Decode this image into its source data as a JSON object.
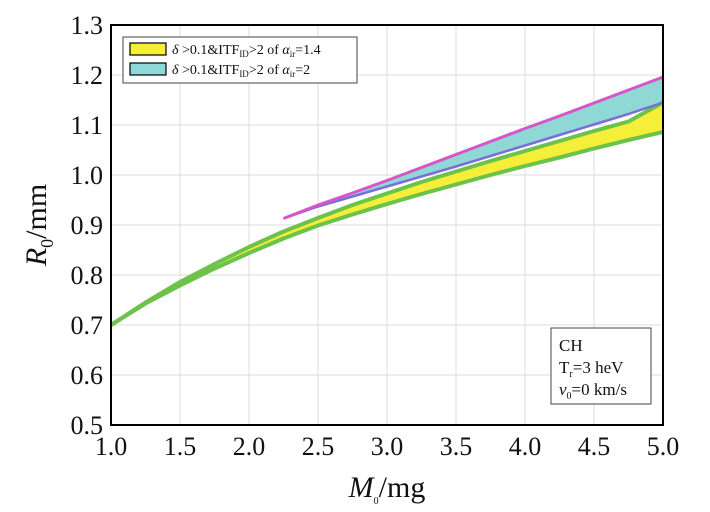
{
  "chart_data": {
    "type": "area",
    "title": "",
    "xlabel": {
      "main": "M",
      "sub": "0",
      "unit": "/mg"
    },
    "ylabel": {
      "main": "R",
      "sub": "0",
      "unit": "/mm"
    },
    "xlim": [
      1.0,
      5.0
    ],
    "ylim": [
      0.5,
      1.3
    ],
    "grid": true,
    "x_ticks": [
      "1.0",
      "1.5",
      "2.0",
      "2.5",
      "3.0",
      "3.5",
      "4.0",
      "4.5",
      "5.0"
    ],
    "y_ticks": [
      "0.5",
      "0.6",
      "0.7",
      "0.8",
      "0.9",
      "1.0",
      "1.1",
      "1.2",
      "1.3"
    ],
    "legend_position": "top-left",
    "series": [
      {
        "name": "yellow-band",
        "legend": {
          "prefix": "δ",
          "mid": " >0.1&ITF",
          "sub1": "ID",
          "mid2": ">2 of ",
          "alpha": "α",
          "sub2": "ir",
          "value": "=1.4"
        },
        "fill": "#f6ef3a",
        "x": [
          1.0,
          1.25,
          1.5,
          1.75,
          2.0,
          2.25,
          2.5,
          2.75,
          3.0,
          3.25,
          3.5,
          3.75,
          4.0,
          4.25,
          4.5,
          4.75,
          5.0
        ],
        "lower": [
          0.7,
          0.743,
          0.779,
          0.813,
          0.844,
          0.873,
          0.899,
          0.921,
          0.942,
          0.962,
          0.981,
          1.0,
          1.018,
          1.035,
          1.053,
          1.07,
          1.086
        ],
        "upper": [
          0.7,
          0.745,
          0.786,
          0.822,
          0.856,
          0.887,
          0.914,
          0.94,
          0.963,
          0.986,
          1.007,
          1.028,
          1.048,
          1.068,
          1.088,
          1.107,
          1.145
        ]
      },
      {
        "name": "cyan-band",
        "legend": {
          "prefix": "δ",
          "mid": " >0.1&ITF",
          "sub1": "ID",
          "mid2": ">2 of ",
          "alpha": "α",
          "sub2": "ir",
          "value": "=2"
        },
        "fill": "#8fd8d6",
        "x": [
          2.25,
          2.5,
          2.75,
          3.0,
          3.25,
          3.5,
          3.75,
          4.0,
          4.25,
          4.5,
          4.75,
          5.0
        ],
        "lower": [
          0.913,
          0.937,
          0.957,
          0.977,
          0.997,
          1.017,
          1.038,
          1.059,
          1.08,
          1.101,
          1.122,
          1.145
        ],
        "upper": [
          0.913,
          0.94,
          0.964,
          0.989,
          1.015,
          1.041,
          1.067,
          1.093,
          1.118,
          1.144,
          1.17,
          1.196
        ]
      }
    ],
    "annotation": {
      "line1": "CH",
      "line2": {
        "main": "T",
        "sub": "r",
        "rest": "=3 heV"
      },
      "line3": {
        "main": "v",
        "sub": "0",
        "rest": "=0 km/s"
      }
    }
  }
}
